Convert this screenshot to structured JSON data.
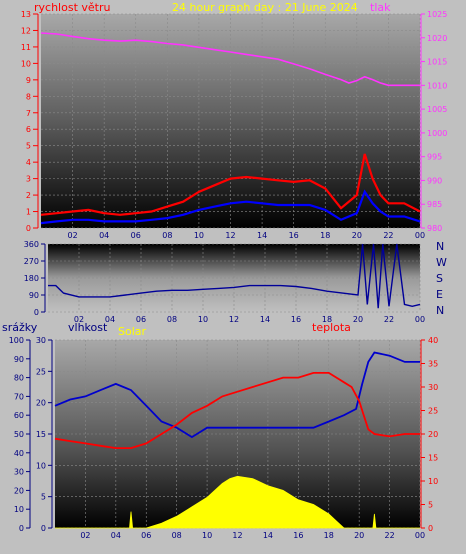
{
  "chart_data": [
    {
      "type": "line",
      "title": "24 hour graph day : 21 June 2024",
      "xticks": [
        "02",
        "04",
        "06",
        "08",
        "10",
        "12",
        "14",
        "16",
        "18",
        "20",
        "22",
        "00"
      ],
      "left_axis": {
        "label": "rychlost větru",
        "ylim": [
          0,
          13
        ],
        "ticks": [
          "0",
          "1",
          "2",
          "3",
          "4",
          "5",
          "6",
          "7",
          "8",
          "9",
          "10",
          "11",
          "12",
          "13"
        ]
      },
      "right_axis": {
        "label": "tlak",
        "ylim": [
          980,
          1025
        ],
        "ticks": [
          "980",
          "985",
          "990",
          "995",
          "1000",
          "1005",
          "1010",
          "1015",
          "1020",
          "1025"
        ]
      },
      "series": [
        {
          "color": "#ff33ff",
          "axis": "right",
          "x": [
            0,
            1,
            2,
            3,
            4,
            5,
            6,
            7,
            8,
            9,
            10,
            11,
            12,
            13,
            14,
            15,
            16,
            17,
            18,
            19,
            19.5,
            20,
            20.5,
            21,
            21.5,
            22,
            23,
            24
          ],
          "values": [
            1021,
            1020.8,
            1020.3,
            1019.8,
            1019.5,
            1019.3,
            1019.5,
            1019.2,
            1018.8,
            1018.5,
            1018,
            1017.5,
            1017,
            1016.5,
            1016,
            1015.5,
            1014.5,
            1013.5,
            1012.3,
            1011.2,
            1010.5,
            1011,
            1011.8,
            1011.2,
            1010.5,
            1010,
            1010,
            1010
          ]
        },
        {
          "color": "#ff0000",
          "axis": "left",
          "x": [
            0,
            1,
            2,
            3,
            4,
            5,
            6,
            7,
            8,
            9,
            10,
            11,
            12,
            13,
            14,
            15,
            16,
            17,
            18,
            19,
            20,
            20.5,
            21,
            21.5,
            22,
            23,
            24
          ],
          "values": [
            0.8,
            0.9,
            1.0,
            1.1,
            0.9,
            0.8,
            0.9,
            1.0,
            1.3,
            1.6,
            2.2,
            2.6,
            3.0,
            3.1,
            3.0,
            2.9,
            2.8,
            2.9,
            2.4,
            1.2,
            2.0,
            4.5,
            3.0,
            2.0,
            1.5,
            1.5,
            1.0
          ]
        },
        {
          "color": "#0000ff",
          "axis": "left",
          "x": [
            0,
            1,
            2,
            3,
            4,
            5,
            6,
            7,
            8,
            9,
            10,
            11,
            12,
            13,
            14,
            15,
            16,
            17,
            18,
            19,
            20,
            20.5,
            21,
            21.5,
            22,
            23,
            24
          ],
          "values": [
            0.3,
            0.4,
            0.5,
            0.5,
            0.4,
            0.4,
            0.4,
            0.5,
            0.6,
            0.8,
            1.1,
            1.3,
            1.5,
            1.6,
            1.5,
            1.4,
            1.4,
            1.4,
            1.1,
            0.5,
            0.9,
            2.2,
            1.5,
            1.0,
            0.7,
            0.7,
            0.4
          ]
        }
      ]
    },
    {
      "type": "line",
      "xticks": [
        "02",
        "04",
        "06",
        "08",
        "10",
        "12",
        "14",
        "16",
        "18",
        "20",
        "22",
        "00"
      ],
      "left_axis": {
        "ylim": [
          0,
          360
        ],
        "ticks": [
          "0",
          "90",
          "180",
          "270",
          "360"
        ]
      },
      "right_labels": [
        "N",
        "W",
        "S",
        "E",
        "N"
      ],
      "series": [
        {
          "color": "#000099",
          "x": [
            0,
            0.5,
            1,
            2,
            3,
            4,
            5,
            6,
            7,
            8,
            9,
            10,
            11,
            12,
            13,
            14,
            15,
            16,
            17,
            18,
            19,
            20,
            20.3,
            20.6,
            21,
            21.3,
            21.6,
            22,
            22.5,
            23,
            23.5,
            24
          ],
          "values": [
            140,
            140,
            100,
            80,
            80,
            80,
            90,
            100,
            110,
            115,
            115,
            120,
            125,
            130,
            140,
            140,
            140,
            135,
            125,
            110,
            100,
            90,
            360,
            40,
            360,
            20,
            360,
            30,
            360,
            40,
            30,
            40
          ]
        }
      ]
    },
    {
      "type": "line",
      "xticks": [
        "02",
        "04",
        "06",
        "08",
        "10",
        "12",
        "14",
        "16",
        "18",
        "20",
        "22",
        "00"
      ],
      "axes": [
        {
          "label": "srážky",
          "ylim": [
            0,
            100
          ],
          "ticks": [
            "0",
            "10",
            "20",
            "30",
            "40",
            "50",
            "60",
            "70",
            "80",
            "90",
            "100"
          ]
        },
        {
          "label": "vlhkost",
          "ylim": [
            0,
            30
          ],
          "ticks": [
            "0",
            "5",
            "10",
            "15",
            "20",
            "25",
            "30"
          ]
        },
        {
          "label": "teplota",
          "ylim": [
            0,
            40
          ],
          "ticks": [
            "0",
            "5",
            "10",
            "15",
            "20",
            "25",
            "30",
            "35",
            "40"
          ]
        }
      ],
      "solar_label": "Solar",
      "series": [
        {
          "color": "#0000cc",
          "axis": "vlhkost",
          "x": [
            0,
            1,
            2,
            3,
            4,
            5,
            6,
            7,
            8,
            9,
            10,
            11,
            12,
            13,
            14,
            15,
            16,
            17,
            18,
            19,
            19.8,
            20.2,
            20.6,
            21,
            22,
            23,
            24
          ],
          "values": [
            19.5,
            20.5,
            21,
            22,
            23,
            22,
            19.5,
            17,
            16,
            14.5,
            16,
            16,
            16,
            16,
            16,
            16,
            16,
            16,
            17,
            18,
            19,
            23,
            26.5,
            28,
            27.5,
            26.5,
            26.5
          ]
        },
        {
          "color": "#ff0000",
          "axis": "teplota",
          "x": [
            0,
            1,
            2,
            3,
            4,
            5,
            6,
            7,
            8,
            9,
            10,
            11,
            12,
            13,
            14,
            15,
            16,
            17,
            18,
            19,
            19.5,
            20,
            20.3,
            20.6,
            21,
            22,
            23,
            24
          ],
          "values": [
            19,
            18.5,
            18,
            17.5,
            17,
            17,
            18,
            20,
            22,
            24.5,
            26,
            28,
            29,
            30,
            31,
            32,
            32,
            33,
            33,
            31,
            30,
            27,
            24,
            21,
            20,
            19.5,
            20,
            20
          ]
        },
        {
          "color": "#ffff00",
          "axis": "teplota",
          "x": [
            0,
            1,
            2,
            3,
            4,
            4.9,
            5,
            5.1,
            6,
            7,
            8,
            9,
            10,
            11,
            11.5,
            12,
            13,
            14,
            15,
            16,
            17,
            18,
            18.5,
            19,
            20,
            20.9,
            21,
            21.1,
            22,
            23,
            24
          ],
          "values": [
            0,
            0,
            0,
            0,
            0,
            0,
            3.5,
            0,
            0,
            1,
            2.5,
            4.5,
            6.5,
            9.5,
            10.5,
            11,
            10.5,
            9,
            8,
            6,
            5,
            3,
            1.5,
            0,
            0,
            0,
            3,
            0,
            0,
            0,
            0
          ]
        }
      ]
    }
  ]
}
